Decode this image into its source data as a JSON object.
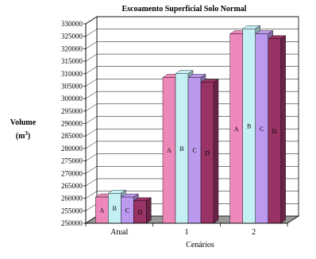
{
  "chart_data": {
    "type": "bar",
    "title": "Escoamento Superficial Solo Normal",
    "xlabel": "Cenários",
    "ylabel": "Volume",
    "ylabel_unit": "(m",
    "ylabel_unit_sup": "3",
    "ylabel_unit_close": ")",
    "ylim": [
      250000,
      330000
    ],
    "ytick_step": 5000,
    "yticks": [
      "250000",
      "255000",
      "260000",
      "265000",
      "270000",
      "275000",
      "280000",
      "285000",
      "290000",
      "295000",
      "300000",
      "305000",
      "310000",
      "315000",
      "320000",
      "325000",
      "330000"
    ],
    "grid": true,
    "categories": [
      "Atual",
      "1",
      "2"
    ],
    "series": [
      {
        "name": "A",
        "color": "#ee88bb",
        "values": [
          260500,
          308500,
          326000
        ]
      },
      {
        "name": "B",
        "color": "#c4f0f4",
        "values": [
          262000,
          310000,
          328000
        ]
      },
      {
        "name": "C",
        "color": "#bb99ee",
        "values": [
          260500,
          308500,
          326000
        ]
      },
      {
        "name": "D",
        "color": "#993366",
        "values": [
          259000,
          306500,
          324000
        ]
      }
    ]
  }
}
